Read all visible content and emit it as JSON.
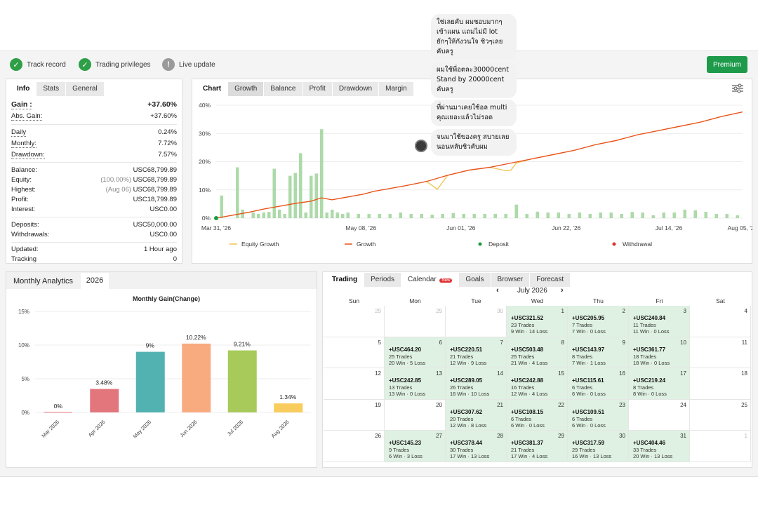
{
  "status_bar": {
    "items": [
      {
        "label": "Track record",
        "icon": "check-circle-icon"
      },
      {
        "label": "Trading privileges",
        "icon": "check-circle-icon"
      },
      {
        "label": "Live update",
        "icon": "exclamation-circle-icon"
      }
    ],
    "premium_label": "Premium"
  },
  "info_panel": {
    "tabs": [
      "Info",
      "Stats",
      "General"
    ],
    "gain": {
      "label": "Gain :",
      "value": "+37.60%"
    },
    "abs_gain": {
      "label": "Abs. Gain:",
      "value": "+37.60%"
    },
    "daily": {
      "label": "Daily",
      "value": "0.24%"
    },
    "monthly": {
      "label": "Monthly:",
      "value": "7.72%"
    },
    "drawdown": {
      "label": "Drawdown:",
      "value": "7.57%"
    },
    "balance": {
      "label": "Balance:",
      "value": "USC68,799.89"
    },
    "equity": {
      "label": "Equity:",
      "note": "(100.00%)",
      "value": "USC68,799.89"
    },
    "highest": {
      "label": "Highest:",
      "note": "(Aug 06)",
      "value": "USC68,799.89"
    },
    "profit": {
      "label": "Profit:",
      "value": "USC18,799.89"
    },
    "interest": {
      "label": "Interest:",
      "value": "USC0.00"
    },
    "deposits": {
      "label": "Deposits:",
      "value": "USC50,000.00"
    },
    "withdrawals": {
      "label": "Withdrawals:",
      "value": "USC0.00"
    },
    "updated": {
      "label": "Updated:",
      "value": "1 Hour ago"
    },
    "tracking": {
      "label": "Tracking",
      "value": "0"
    }
  },
  "chart_panel": {
    "tabs": [
      "Chart",
      "Growth",
      "Balance",
      "Profit",
      "Drawdown",
      "Margin"
    ],
    "settings_icon": "sliders-icon",
    "legend": [
      {
        "label": "Equity Growth",
        "color": "#f2c14e"
      },
      {
        "label": "Growth",
        "color": "#e8501e"
      },
      {
        "label": "Deposit",
        "color": "#1e9b3d"
      },
      {
        "label": "Withdrawal",
        "color": "#e03030"
      }
    ]
  },
  "chat": {
    "bubbles": [
      "ใช่เลยคับ ผมชอบมากๆ เข้าแผน แถมไม่มี lot ยักๆให้กังวนใจ ชิวๆเลยคับครู",
      "ผมใช้พี่อตละ30000cent Stand by 20000cent คับครู",
      "ที่ผ่านมาเคยใช้อล multi คุณเยอะแล้วไม่รอด",
      "จนมาใช้ของครู สบายเลย นอนหลับชิวคับผม"
    ]
  },
  "monthly_panel": {
    "title": "Monthly Analytics",
    "year": "2026"
  },
  "calendar_panel": {
    "tabs": [
      "Trading",
      "Periods",
      "Calendar",
      "Goals",
      "Browser",
      "Forecast"
    ],
    "new_badge": "New",
    "month_label": "July 2026",
    "prev_icon": "chevron-left-icon",
    "next_icon": "chevron-right-icon",
    "weekdays": [
      "Sun",
      "Mon",
      "Tue",
      "Wed",
      "Thu",
      "Fri",
      "Sat"
    ],
    "weeks": [
      [
        {
          "d": "29",
          "g": true
        },
        {
          "d": "29",
          "g": true
        },
        {
          "d": "30",
          "g": true
        },
        {
          "d": "1",
          "amt": "+USC321.52",
          "tr": "23 Trades",
          "wl": "9 Win · 14 Loss"
        },
        {
          "d": "2",
          "amt": "+USC205.95",
          "tr": "7 Trades",
          "wl": "7 Win · 0 Loss"
        },
        {
          "d": "3",
          "amt": "+USC240.84",
          "tr": "11 Trades",
          "wl": "11 Win · 0 Loss"
        },
        {
          "d": "4"
        }
      ],
      [
        {
          "d": "5"
        },
        {
          "d": "6",
          "amt": "+USC464.20",
          "tr": "25 Trades",
          "wl": "20 Win · 5 Loss"
        },
        {
          "d": "7",
          "amt": "+USC220.51",
          "tr": "21 Trades",
          "wl": "12 Win · 9 Loss"
        },
        {
          "d": "8",
          "amt": "+USC503.48",
          "tr": "25 Trades",
          "wl": "21 Win · 4 Loss"
        },
        {
          "d": "9",
          "amt": "+USC143.97",
          "tr": "8 Trades",
          "wl": "7 Win · 1 Loss"
        },
        {
          "d": "10",
          "amt": "+USC361.77",
          "tr": "18 Trades",
          "wl": "18 Win · 0 Loss"
        },
        {
          "d": "11"
        }
      ],
      [
        {
          "d": "12"
        },
        {
          "d": "13",
          "amt": "+USC242.85",
          "tr": "13 Trades",
          "wl": "13 Win · 0 Loss"
        },
        {
          "d": "14",
          "amt": "+USC289.05",
          "tr": "26 Trades",
          "wl": "16 Win · 10 Loss"
        },
        {
          "d": "15",
          "amt": "+USC242.88",
          "tr": "16 Trades",
          "wl": "12 Win · 4 Loss"
        },
        {
          "d": "16",
          "amt": "+USC115.61",
          "tr": "6 Trades",
          "wl": "6 Win · 0 Loss"
        },
        {
          "d": "17",
          "amt": "+USC219.24",
          "tr": "8 Trades",
          "wl": "8 Win · 0 Loss"
        },
        {
          "d": "18"
        }
      ],
      [
        {
          "d": "19"
        },
        {
          "d": "20"
        },
        {
          "d": "21",
          "amt": "+USC307.62",
          "tr": "20 Trades",
          "wl": "12 Win · 8 Loss"
        },
        {
          "d": "22",
          "amt": "+USC108.15",
          "tr": "6 Trades",
          "wl": "6 Win · 0 Loss"
        },
        {
          "d": "23",
          "amt": "+USC109.51",
          "tr": "6 Trades",
          "wl": "6 Win · 0 Loss"
        },
        {
          "d": "24"
        },
        {
          "d": "25"
        }
      ],
      [
        {
          "d": "26"
        },
        {
          "d": "27",
          "amt": "+USC145.23",
          "tr": "9 Trades",
          "wl": "6 Win · 3 Loss"
        },
        {
          "d": "28",
          "amt": "+USC378.44",
          "tr": "30 Trades",
          "wl": "17 Win · 13 Loss"
        },
        {
          "d": "29",
          "amt": "+USC381.37",
          "tr": "21 Trades",
          "wl": "17 Win · 4 Loss"
        },
        {
          "d": "30",
          "amt": "+USC317.59",
          "tr": "29 Trades",
          "wl": "16 Win · 13 Loss"
        },
        {
          "d": "31",
          "amt": "+USC404.46",
          "tr": "33 Trades",
          "wl": "20 Win · 13 Loss"
        },
        {
          "d": "1",
          "g": true
        }
      ]
    ]
  },
  "chart_data": [
    {
      "type": "line",
      "title": "",
      "x_ticks": [
        "Mar 31, '26",
        "May 08, '26",
        "Jun 01, '26",
        "Jun 22, '26",
        "Jul 14, '26",
        "Aug 05, '26"
      ],
      "y_ticks": [
        "0%",
        "10%",
        "20%",
        "30%",
        "40%"
      ],
      "ylim": [
        0,
        40
      ],
      "series": [
        {
          "name": "Growth",
          "color": "#e8501e",
          "x": [
            0,
            3,
            6,
            9,
            12,
            15,
            18,
            20,
            22,
            25,
            28,
            30,
            33,
            36,
            40,
            44,
            48,
            52,
            56,
            60,
            64,
            68,
            72,
            76,
            80,
            84,
            88,
            92,
            96,
            100
          ],
          "y": [
            0,
            1,
            2,
            3.2,
            4.2,
            5.2,
            6,
            7.2,
            6.5,
            7.5,
            8.5,
            9.5,
            10.5,
            11.5,
            13,
            15.2,
            17,
            18,
            19.5,
            21,
            22.5,
            24,
            26,
            27.5,
            29.5,
            31,
            32.5,
            34,
            36,
            37.6
          ]
        },
        {
          "name": "Equity Growth",
          "color": "#f2c14e",
          "x": [
            0,
            3,
            6,
            9,
            12,
            15,
            18,
            20,
            22,
            25,
            28,
            30,
            33,
            36,
            40,
            42,
            44,
            48,
            52,
            55,
            56,
            57,
            60,
            64,
            68,
            72,
            76,
            80,
            84,
            88,
            92,
            96,
            100
          ],
          "y": [
            0,
            1,
            2,
            3.2,
            4.2,
            5.2,
            6,
            7.2,
            6.5,
            7.5,
            8.5,
            9.5,
            10.5,
            11.5,
            13,
            10.2,
            15.2,
            17,
            18,
            16.8,
            17,
            19.5,
            21,
            22.5,
            24,
            26,
            27.5,
            29.5,
            31,
            32.5,
            34,
            36,
            37.6
          ]
        }
      ],
      "bars": {
        "x": [
          1,
          4,
          5,
          7,
          8,
          9,
          10,
          11,
          12,
          13,
          14,
          15,
          16,
          17,
          18,
          19,
          20,
          21,
          22,
          23,
          24,
          25,
          27,
          29,
          31,
          33,
          35,
          37,
          39,
          41,
          43,
          45,
          47,
          49,
          51,
          53,
          55,
          57,
          59,
          61,
          63,
          65,
          67,
          69,
          71,
          73,
          75,
          77,
          79,
          81,
          83,
          85,
          87,
          89,
          91,
          93,
          95,
          97,
          99
        ],
        "y": [
          8,
          18,
          3,
          2,
          1.5,
          2,
          2.2,
          17.5,
          3,
          1.5,
          15,
          16,
          23,
          2,
          15,
          15.8,
          31.5,
          2,
          3,
          2,
          1.5,
          2,
          1.5,
          1.5,
          1.5,
          1.5,
          2,
          1.5,
          1.5,
          1.2,
          1.5,
          1.8,
          1.5,
          1.5,
          1.5,
          1.5,
          1.5,
          4.8,
          1.5,
          2.3,
          2,
          2,
          1.5,
          2,
          1.5,
          2,
          2,
          1.5,
          2.2,
          2,
          1,
          2,
          2,
          3,
          2.8,
          2.2,
          1.5,
          1.5,
          1
        ]
      }
    },
    {
      "type": "bar",
      "title": "Monthly Gain(Change)",
      "categories": [
        "Mar 2026",
        "Apr 2026",
        "May 2026",
        "Jun 2026",
        "Jul 2026",
        "Aug 2026"
      ],
      "values": [
        0,
        3.48,
        9,
        10.22,
        9.21,
        1.34
      ],
      "labels": [
        "0%",
        "3.48%",
        "9%",
        "10.22%",
        "9.21%",
        "1.34%"
      ],
      "colors": [
        "#e3767d",
        "#e3767d",
        "#52b2b2",
        "#f9ab80",
        "#a7ca5b",
        "#f9cc5e"
      ],
      "y_ticks": [
        "0%",
        "5%",
        "10%",
        "15%"
      ],
      "ylim": [
        0,
        15
      ]
    }
  ]
}
